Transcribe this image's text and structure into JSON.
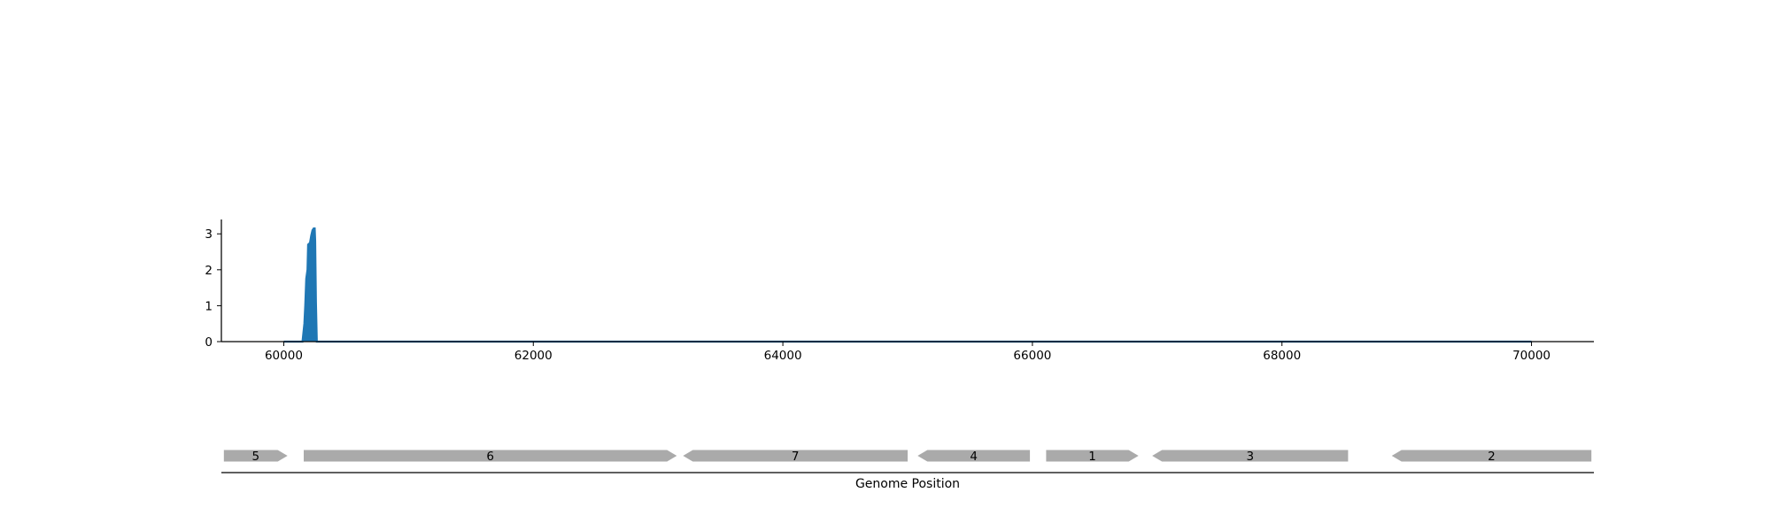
{
  "chart_data": [
    {
      "type": "area",
      "title": "",
      "xlabel": "",
      "ylabel": "",
      "xlim": [
        59500,
        70500
      ],
      "ylim": [
        0,
        3.4
      ],
      "x_ticks": [
        60000,
        62000,
        64000,
        66000,
        68000,
        70000
      ],
      "y_ticks": [
        0,
        1,
        2,
        3
      ],
      "grid": false,
      "legend": "none",
      "series": [
        {
          "color": "#1f77b4",
          "points": [
            [
              60000,
              0
            ],
            [
              60150,
              0
            ],
            [
              60165,
              0.5
            ],
            [
              60172,
              1.0
            ],
            [
              60180,
              1.75
            ],
            [
              60190,
              2.0
            ],
            [
              60195,
              2.7
            ],
            [
              60210,
              2.75
            ],
            [
              60220,
              2.95
            ],
            [
              60230,
              3.1
            ],
            [
              60240,
              3.15
            ],
            [
              60248,
              3.15
            ],
            [
              60252,
              2.8
            ],
            [
              60258,
              1.1
            ],
            [
              60265,
              0
            ],
            [
              70000,
              0
            ]
          ]
        }
      ]
    },
    {
      "type": "gene-track",
      "xlabel": "Genome Position",
      "xlim": [
        59500,
        70500
      ],
      "genes": [
        {
          "label": "5",
          "start": 59520,
          "end": 60030,
          "strand": "+"
        },
        {
          "label": "6",
          "start": 60160,
          "end": 63150,
          "strand": "+"
        },
        {
          "label": "7",
          "start": 63200,
          "end": 65000,
          "strand": "-"
        },
        {
          "label": "4",
          "start": 65080,
          "end": 65980,
          "strand": "-"
        },
        {
          "label": "1",
          "start": 66110,
          "end": 66850,
          "strand": "+"
        },
        {
          "label": "3",
          "start": 66960,
          "end": 68530,
          "strand": "-"
        },
        {
          "label": "2",
          "start": 68880,
          "end": 70480,
          "strand": "-"
        }
      ],
      "gene_color": "#aaaaaa"
    }
  ]
}
